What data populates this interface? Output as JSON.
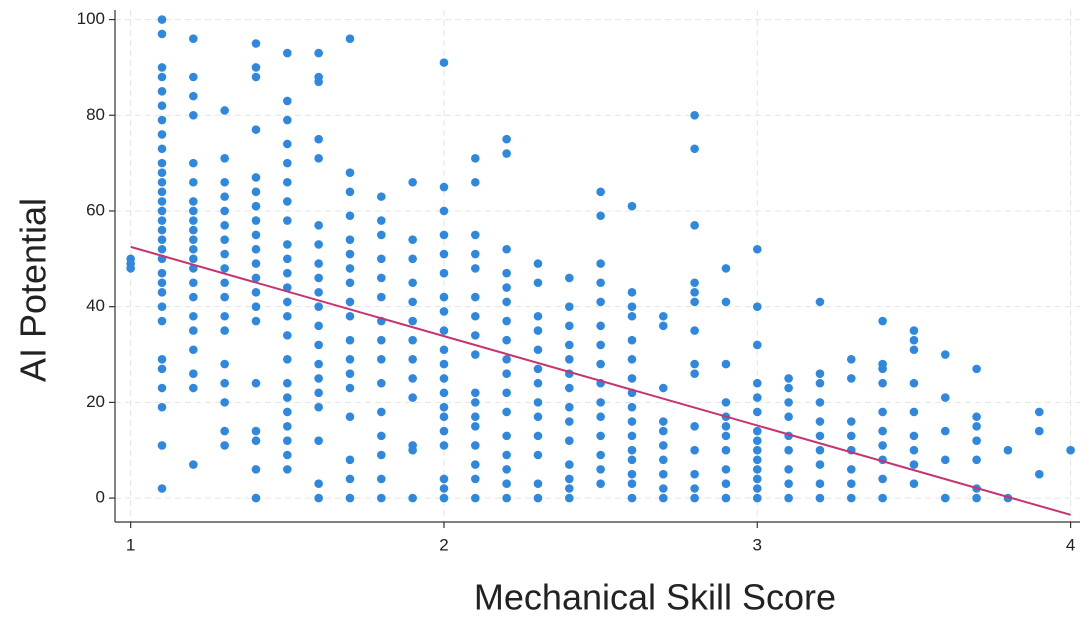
{
  "chart_data": {
    "type": "scatter",
    "x_label": "Mechanical Skill Score",
    "y_label": "AI Potential",
    "xlim": [
      0.95,
      4.03
    ],
    "ylim": [
      -5,
      102
    ],
    "xticks": [
      1,
      2,
      3,
      4
    ],
    "yticks": [
      0,
      20,
      40,
      60,
      80,
      100
    ],
    "grid": true,
    "color": "#2f88df",
    "groups": [
      {
        "x": 1.0,
        "values": [
          48,
          49,
          50
        ]
      },
      {
        "x": 1.1,
        "values": [
          2,
          11,
          19,
          23,
          27,
          29,
          37,
          40,
          43,
          45,
          47,
          50,
          52,
          54,
          56,
          58,
          60,
          62,
          64,
          66,
          68,
          70,
          73,
          76,
          79,
          82,
          85,
          88,
          90,
          97,
          100
        ]
      },
      {
        "x": 1.2,
        "values": [
          7,
          23,
          26,
          31,
          35,
          38,
          42,
          45,
          48,
          50,
          52,
          54,
          56,
          58,
          60,
          62,
          66,
          70,
          80,
          84,
          88,
          96
        ]
      },
      {
        "x": 1.3,
        "values": [
          11,
          14,
          20,
          24,
          28,
          35,
          38,
          42,
          45,
          48,
          51,
          54,
          57,
          60,
          63,
          66,
          71,
          81
        ]
      },
      {
        "x": 1.4,
        "values": [
          0,
          6,
          12,
          14,
          24,
          37,
          40,
          43,
          46,
          49,
          52,
          55,
          58,
          61,
          64,
          67,
          77,
          88,
          90,
          95
        ]
      },
      {
        "x": 1.5,
        "values": [
          6,
          9,
          12,
          15,
          18,
          21,
          24,
          29,
          34,
          38,
          41,
          44,
          47,
          50,
          53,
          58,
          62,
          66,
          70,
          74,
          79,
          83,
          93
        ]
      },
      {
        "x": 1.6,
        "values": [
          0,
          3,
          12,
          19,
          22,
          25,
          28,
          32,
          36,
          40,
          43,
          46,
          49,
          53,
          57,
          71,
          75,
          87,
          88,
          93
        ]
      },
      {
        "x": 1.7,
        "values": [
          0,
          4,
          8,
          17,
          23,
          26,
          29,
          33,
          38,
          41,
          45,
          48,
          51,
          54,
          59,
          64,
          68,
          96
        ]
      },
      {
        "x": 1.8,
        "values": [
          0,
          4,
          9,
          13,
          18,
          24,
          29,
          33,
          37,
          42,
          46,
          50,
          55,
          58,
          63
        ]
      },
      {
        "x": 1.9,
        "values": [
          0,
          10,
          11,
          21,
          25,
          29,
          33,
          37,
          41,
          45,
          50,
          54,
          66
        ]
      },
      {
        "x": 2.0,
        "values": [
          0,
          2,
          4,
          11,
          14,
          17,
          19,
          22,
          25,
          28,
          31,
          35,
          39,
          42,
          47,
          51,
          55,
          60,
          65,
          91
        ]
      },
      {
        "x": 2.1,
        "values": [
          0,
          4,
          7,
          11,
          15,
          17,
          20,
          22,
          30,
          34,
          38,
          42,
          48,
          51,
          55,
          66,
          71
        ]
      },
      {
        "x": 2.2,
        "values": [
          0,
          3,
          6,
          9,
          13,
          18,
          22,
          26,
          29,
          33,
          37,
          41,
          44,
          47,
          52,
          72,
          75
        ]
      },
      {
        "x": 2.3,
        "values": [
          0,
          3,
          9,
          13,
          17,
          20,
          24,
          27,
          31,
          35,
          38,
          45,
          49
        ]
      },
      {
        "x": 2.4,
        "values": [
          0,
          2,
          4,
          7,
          12,
          16,
          19,
          23,
          26,
          29,
          32,
          36,
          40,
          46
        ]
      },
      {
        "x": 2.5,
        "values": [
          3,
          6,
          9,
          13,
          17,
          20,
          24,
          28,
          32,
          36,
          41,
          45,
          49,
          59,
          64
        ]
      },
      {
        "x": 2.6,
        "values": [
          0,
          3,
          5,
          8,
          10,
          13,
          16,
          19,
          22,
          25,
          29,
          33,
          38,
          40,
          43,
          61
        ]
      },
      {
        "x": 2.7,
        "values": [
          0,
          2,
          5,
          8,
          11,
          14,
          16,
          23,
          36,
          38
        ]
      },
      {
        "x": 2.8,
        "values": [
          0,
          2,
          5,
          10,
          15,
          26,
          28,
          35,
          41,
          43,
          45,
          57,
          73,
          80
        ]
      },
      {
        "x": 2.9,
        "values": [
          0,
          3,
          6,
          10,
          13,
          15,
          17,
          20,
          28,
          41,
          48
        ]
      },
      {
        "x": 3.0,
        "values": [
          0,
          2,
          4,
          6,
          8,
          10,
          12,
          14,
          18,
          21,
          24,
          32,
          40,
          52
        ]
      },
      {
        "x": 3.1,
        "values": [
          0,
          3,
          6,
          10,
          13,
          17,
          20,
          23,
          25
        ]
      },
      {
        "x": 3.2,
        "values": [
          0,
          3,
          7,
          10,
          13,
          16,
          20,
          24,
          26,
          41
        ]
      },
      {
        "x": 3.3,
        "values": [
          0,
          3,
          6,
          10,
          13,
          16,
          25,
          29
        ]
      },
      {
        "x": 3.4,
        "values": [
          0,
          4,
          8,
          11,
          14,
          18,
          24,
          27,
          28,
          37
        ]
      },
      {
        "x": 3.5,
        "values": [
          3,
          7,
          10,
          13,
          18,
          24,
          31,
          33,
          35
        ]
      },
      {
        "x": 3.6,
        "values": [
          0,
          8,
          14,
          21,
          30
        ]
      },
      {
        "x": 3.7,
        "values": [
          0,
          2,
          8,
          12,
          15,
          17,
          27
        ]
      },
      {
        "x": 3.8,
        "values": [
          0,
          10
        ]
      },
      {
        "x": 3.9,
        "values": [
          5,
          14,
          18
        ]
      },
      {
        "x": 4.0,
        "values": [
          10
        ]
      }
    ],
    "fit_line": {
      "x": [
        1,
        4
      ],
      "y": [
        52.5,
        -3.5
      ],
      "color": "#c8336f"
    }
  }
}
